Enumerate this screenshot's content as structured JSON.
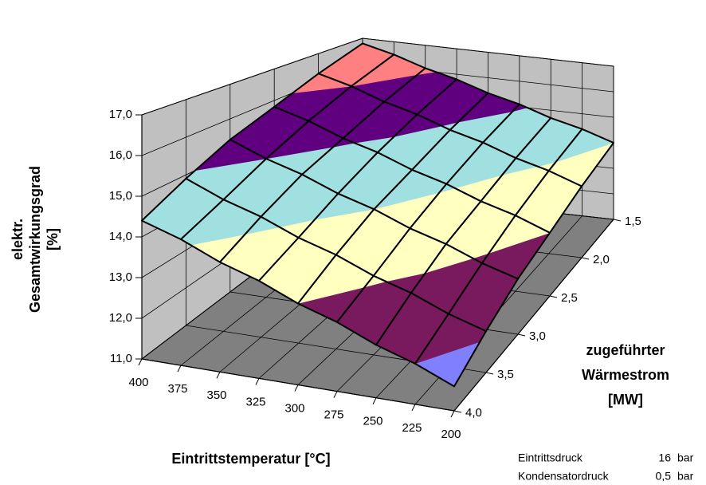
{
  "chart_data": {
    "type": "surface",
    "ylabel": [
      "elektr.",
      "Gesamtwirkungsgrad",
      "[%]"
    ],
    "xlabel": "Eintrittstemperatur [°C]",
    "zlabel": [
      "zugeführter",
      "Wärmestrom",
      "[MW]"
    ],
    "categories": [
      "400",
      "375",
      "350",
      "325",
      "300",
      "275",
      "250",
      "225",
      "200"
    ],
    "series": [
      {
        "name": "1,5",
        "values": [
          16.8,
          16.5,
          16.1,
          15.8,
          15.4,
          15.1,
          14.7,
          14.4,
          14.0
        ]
      },
      {
        "name": "2,0",
        "values": [
          16.3,
          16.0,
          15.6,
          15.3,
          14.9,
          14.6,
          14.2,
          13.9,
          13.5
        ]
      },
      {
        "name": "2,5",
        "values": [
          15.8,
          15.5,
          15.1,
          14.8,
          14.4,
          14.1,
          13.7,
          13.4,
          13.0
        ]
      },
      {
        "name": "3,0",
        "values": [
          15.4,
          15.0,
          14.7,
          14.3,
          14.0,
          13.6,
          13.3,
          12.9,
          12.6
        ]
      },
      {
        "name": "3,5",
        "values": [
          14.9,
          14.5,
          14.2,
          13.8,
          13.5,
          13.1,
          12.8,
          12.4,
          12.1
        ]
      },
      {
        "name": "4,0",
        "values": [
          14.4,
          14.1,
          13.7,
          13.4,
          13.0,
          12.7,
          12.3,
          12.0,
          11.6
        ]
      }
    ],
    "ylim": [
      11,
      17
    ],
    "yticks": [
      {
        "value": 11,
        "label": "11,0"
      },
      {
        "value": 12,
        "label": "12,0"
      },
      {
        "value": 13,
        "label": "13,0"
      },
      {
        "value": 14,
        "label": "14,0"
      },
      {
        "value": 15,
        "label": "15,0"
      },
      {
        "value": 16,
        "label": "16,0"
      },
      {
        "value": 17,
        "label": "17,0"
      }
    ],
    "band_colors": [
      "#8080ff",
      "#7a1a5e",
      "#ffffc0",
      "#a0e0e0",
      "#600080",
      "#ff8080"
    ],
    "wall_color": "#c0c0c0",
    "floor_color": "#808080",
    "grid": true
  },
  "notes": [
    [
      "Eintrittsdruck",
      "16",
      "bar"
    ],
    [
      "Kondensatordruck",
      "0,5",
      "bar"
    ]
  ]
}
